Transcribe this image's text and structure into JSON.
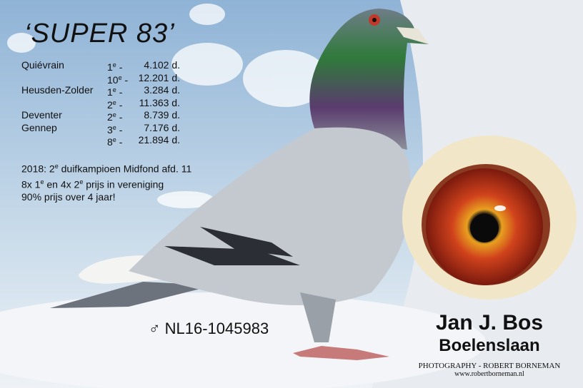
{
  "title": "‘SUPER 83’",
  "results": [
    {
      "place": "Quiévrain",
      "rank": "1",
      "sup": "e",
      "sep": " -",
      "dist": "4.102 d."
    },
    {
      "place": "",
      "rank": "10",
      "sup": "e",
      "sep": " -",
      "dist": "12.201 d."
    },
    {
      "place": "Heusden-Zolder",
      "rank": "1",
      "sup": "e",
      "sep": " -",
      "dist": "3.284 d."
    },
    {
      "place": "",
      "rank": "2",
      "sup": "e",
      "sep": " -",
      "dist": "11.363 d."
    },
    {
      "place": "Deventer",
      "rank": "2",
      "sup": "e",
      "sep": " -",
      "dist": "8.739 d."
    },
    {
      "place": "Gennep",
      "rank": "3",
      "sup": "e",
      "sep": " -",
      "dist": "7.176 d."
    },
    {
      "place": "",
      "rank": "8",
      "sup": "e",
      "sep": " -",
      "dist": "21.894 d."
    }
  ],
  "notes": {
    "line1_a": "2018: 2",
    "line1_sup": "e",
    "line1_b": " duifkampioen Midfond afd. 11",
    "line2_a": "8x 1",
    "line2_sup1": "e",
    "line2_b": " en 4x 2",
    "line2_sup2": "e",
    "line2_c": " prijs in vereniging",
    "line3": "90% prijs over 4 jaar!"
  },
  "ring": "♂ NL16-1045983",
  "owner": {
    "name": "Jan J. Bos",
    "loft": "Boelenslaan"
  },
  "photographer": {
    "credit": "PHOTOGRAPHY - ROBERT BORNEMAN",
    "url": "www.robertborneman.nl"
  },
  "colors": {
    "sky": "#9fbfdc",
    "iris": "#c8321a",
    "neck_green": "#2f7a3a",
    "neck_purple": "#5a3c6e",
    "wing": "#c4c8cf"
  }
}
